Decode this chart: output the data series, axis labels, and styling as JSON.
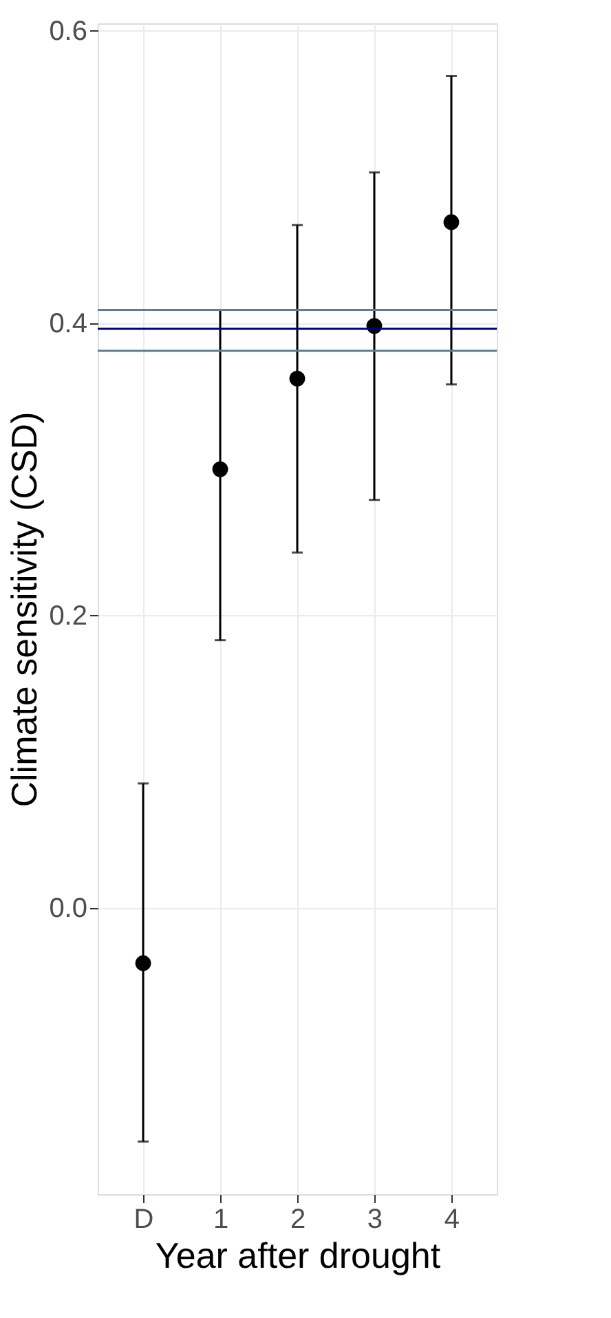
{
  "chart_data": {
    "type": "scatter",
    "xlabel": "Year after drought",
    "ylabel": "Climate sensitivity (CSD)",
    "categories": [
      "D",
      "1",
      "2",
      "3",
      "4"
    ],
    "series": [
      {
        "color": "#000000",
        "values": [
          -0.038,
          0.3,
          0.362,
          0.398,
          0.469
        ],
        "errors": [
          [
            -0.16,
            0.085
          ],
          [
            0.183,
            0.409
          ],
          [
            0.243,
            0.467
          ],
          [
            0.279,
            0.503
          ],
          [
            0.358,
            0.569
          ]
        ]
      }
    ],
    "ylim": [
      -0.196,
      0.605
    ],
    "yticks": [
      {
        "value": 0.0,
        "label": "0.0"
      },
      0.2,
      0.4,
      0.6
    ],
    "ref_lines": [
      {
        "axis": "y",
        "value": 0.409,
        "color": "#5b7e96"
      },
      {
        "axis": "y",
        "value": 0.396,
        "color": "#00008b"
      },
      {
        "axis": "y",
        "value": 0.381,
        "color": "#5b7e96"
      }
    ],
    "grid": true,
    "marker": "circle"
  }
}
